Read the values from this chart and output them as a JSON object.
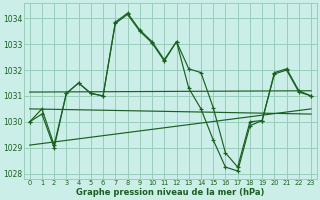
{
  "title": "Graphe pression niveau de la mer (hPa)",
  "ylim": [
    1027.8,
    1034.6
  ],
  "yticks": [
    1028,
    1029,
    1030,
    1031,
    1032,
    1033,
    1034
  ],
  "background_color": "#cceee8",
  "grid_color": "#99ccbb",
  "line_color": "#1a6020",
  "x_values": [
    0,
    1,
    2,
    3,
    4,
    5,
    6,
    7,
    8,
    9,
    10,
    11,
    12,
    13,
    14,
    15,
    16,
    17,
    18,
    19,
    20,
    21,
    22,
    23
  ],
  "series1": [
    1030.0,
    1030.5,
    1029.1,
    1031.1,
    1031.5,
    1031.1,
    1031.0,
    1033.8,
    1034.15,
    1033.5,
    1033.05,
    1032.35,
    1033.1,
    1032.05,
    1031.9,
    1030.55,
    1028.8,
    1028.25,
    1030.0,
    1030.05,
    1031.85,
    1032.0,
    1031.15,
    1031.0
  ],
  "series2": [
    1030.0,
    1030.3,
    1029.0,
    1031.1,
    1031.5,
    1031.1,
    1031.0,
    1033.85,
    1034.2,
    1033.55,
    1033.1,
    1032.4,
    1033.1,
    1031.3,
    1030.5,
    1029.3,
    1028.25,
    1028.1,
    1029.85,
    1030.05,
    1031.9,
    1032.05,
    1031.2,
    1031.0
  ],
  "trend_lines": [
    {
      "x": [
        0,
        23
      ],
      "y": [
        1031.15,
        1031.2
      ]
    },
    {
      "x": [
        0,
        23
      ],
      "y": [
        1030.5,
        1030.3
      ]
    },
    {
      "x": [
        0,
        23
      ],
      "y": [
        1029.1,
        1030.5
      ]
    }
  ]
}
